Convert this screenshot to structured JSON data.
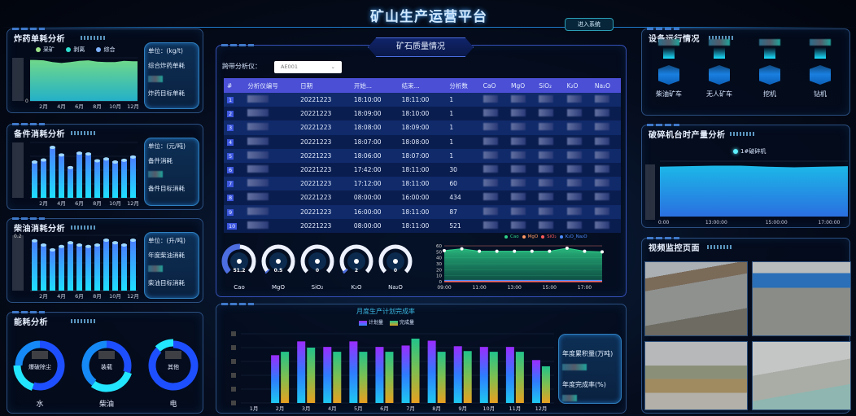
{
  "header": {
    "title": "矿山生产运营平台",
    "enter_button": "进入系统"
  },
  "explosive": {
    "title": "炸药单耗分析",
    "legend": [
      {
        "label": "采矿",
        "color": "#9be38a"
      },
      {
        "label": "剥离",
        "color": "#2fe0d0"
      },
      {
        "label": "综合",
        "color": "#7fb2ff"
      }
    ],
    "info": {
      "unit": "单位：(kg/t)",
      "line1": "综合炸药单耗",
      "line2": "炸药目标单耗"
    },
    "chart_data": {
      "type": "area",
      "categories": [
        "1月",
        "2月",
        "3月",
        "4月",
        "5月",
        "6月",
        "7月",
        "8月",
        "9月",
        "10月",
        "11月",
        "12月"
      ],
      "tick_labels": [
        "2月",
        "4月",
        "6月",
        "8月",
        "10月",
        "12月"
      ],
      "values": [
        0.95,
        0.94,
        0.9,
        0.88,
        0.9,
        0.93,
        0.94,
        0.91,
        0.9,
        0.9,
        0.93,
        0.92
      ],
      "yticks_visible": [
        "0"
      ]
    }
  },
  "spare": {
    "title": "备件消耗分析",
    "info": {
      "unit": "单位：(元/吨)",
      "line1": "备件消耗",
      "line2": "备件目标消耗"
    },
    "chart_data": {
      "type": "bar",
      "categories": [
        "1月",
        "2月",
        "3月",
        "4月",
        "5月",
        "6月",
        "7月",
        "8月",
        "9月",
        "10月",
        "11月",
        "12月"
      ],
      "tick_labels": [
        "2月",
        "4月",
        "6月",
        "8月",
        "10月",
        "12月"
      ],
      "values": [
        145,
        153,
        203,
        173,
        123,
        180,
        177,
        150,
        157,
        145,
        152,
        165
      ]
    }
  },
  "diesel": {
    "title": "柴油消耗分析",
    "info": {
      "unit": "单位：(升/吨)",
      "line1": "年度柴油消耗",
      "line2": "柴油目标消耗"
    },
    "chart_data": {
      "type": "bar",
      "categories": [
        "1月",
        "2月",
        "3月",
        "4月",
        "5月",
        "6月",
        "7月",
        "8月",
        "9月",
        "10月",
        "11月",
        "12月"
      ],
      "tick_labels": [
        "2月",
        "4月",
        "6月",
        "8月",
        "10月",
        "12月"
      ],
      "ymax_label": "0.2",
      "values": [
        0.178,
        0.163,
        0.146,
        0.158,
        0.171,
        0.163,
        0.158,
        0.163,
        0.18,
        0.171,
        0.163,
        0.18
      ]
    }
  },
  "energy": {
    "title": "能耗分析",
    "donuts": [
      {
        "name": "水",
        "center_label": "爆破除尘",
        "shares": [
          55,
          20,
          25
        ]
      },
      {
        "name": "柴油",
        "center_label": "装载",
        "shares": [
          30,
          30,
          40
        ]
      },
      {
        "name": "电",
        "center_label": "其他",
        "shares": [
          88,
          12
        ]
      }
    ],
    "colors": [
      "#1e4fff",
      "#22e6ff",
      "#1589f5"
    ]
  },
  "ore": {
    "title": "矿石质量情况",
    "selector_label": "跨带分析仪：",
    "selector_value": "AE001",
    "columns": [
      "#",
      "分析仪编号",
      "日期",
      "开始...",
      "结束...",
      "分析数",
      "CaO",
      "MgO",
      "SiO₂",
      "K₂O",
      "Na₂O"
    ],
    "rows": [
      {
        "n": "1",
        "date": "20221223",
        "start": "18:10:00",
        "end": "18:11:00",
        "count": "1"
      },
      {
        "n": "2",
        "date": "20221223",
        "start": "18:09:00",
        "end": "18:10:00",
        "count": "1"
      },
      {
        "n": "3",
        "date": "20221223",
        "start": "18:08:00",
        "end": "18:09:00",
        "count": "1"
      },
      {
        "n": "4",
        "date": "20221223",
        "start": "18:07:00",
        "end": "18:08:00",
        "count": "1"
      },
      {
        "n": "5",
        "date": "20221223",
        "start": "18:06:00",
        "end": "18:07:00",
        "count": "1"
      },
      {
        "n": "6",
        "date": "20221223",
        "start": "17:42:00",
        "end": "18:11:00",
        "count": "30"
      },
      {
        "n": "7",
        "date": "20221223",
        "start": "17:12:00",
        "end": "18:11:00",
        "count": "60"
      },
      {
        "n": "8",
        "date": "20221223",
        "start": "08:00:00",
        "end": "16:00:00",
        "count": "434"
      },
      {
        "n": "9",
        "date": "20221223",
        "start": "16:00:00",
        "end": "18:11:00",
        "count": "87"
      },
      {
        "n": "10",
        "date": "20221223",
        "start": "08:00:00",
        "end": "18:11:00",
        "count": "521"
      }
    ],
    "gauges": [
      {
        "label": "Cao",
        "value": "51.2",
        "fraction": 0.51
      },
      {
        "label": "MgO",
        "value": "0.5",
        "fraction": 0.02
      },
      {
        "label": "SiO₂",
        "value": "0",
        "fraction": 0
      },
      {
        "label": "K₂O",
        "value": "2",
        "fraction": 0.03
      },
      {
        "label": "Na₂O",
        "value": "0",
        "fraction": 0
      }
    ],
    "line_chart": {
      "type": "line",
      "legend": [
        {
          "label": "Cao",
          "color": "#2ed18a"
        },
        {
          "label": "MgO",
          "color": "#ff9966"
        },
        {
          "label": "SiO₂",
          "color": "#ff5a5a"
        },
        {
          "label": "K₂O_Na₂O",
          "color": "#4d8cff"
        }
      ],
      "x": [
        "09:00",
        "10:00",
        "11:00",
        "12:00",
        "13:00",
        "14:00",
        "15:00",
        "16:00",
        "17:00",
        "18:00"
      ],
      "xtick_labels": [
        "09:00",
        "11:00",
        "13:00",
        "15:00",
        "17:00"
      ],
      "yticks": [
        "0",
        "10",
        "20",
        "30",
        "40",
        "50",
        "60"
      ],
      "ylim": [
        0,
        60
      ],
      "series": [
        {
          "name": "Cao",
          "values": [
            52,
            55,
            51,
            51,
            51,
            51,
            51,
            56,
            51,
            50
          ]
        },
        {
          "name": "MgO",
          "values": [
            0.5,
            0.5,
            0.5,
            0.5,
            0.5,
            0.5,
            0.5,
            0.5,
            0.5,
            0.5
          ]
        },
        {
          "name": "SiO₂",
          "values": [
            0,
            0,
            0,
            0,
            0,
            0,
            0,
            0,
            0,
            0
          ]
        },
        {
          "name": "K₂O_Na₂O",
          "values": [
            2,
            2,
            2,
            2,
            2,
            2,
            2,
            2,
            2,
            2
          ]
        }
      ]
    }
  },
  "monthly": {
    "chart_data": {
      "type": "bar",
      "title": "月度生产计划完成率",
      "categories": [
        "1月",
        "2月",
        "3月",
        "4月",
        "5月",
        "6月",
        "7月",
        "8月",
        "9月",
        "10月",
        "11月",
        "12月"
      ],
      "series": [
        {
          "name": "计划量",
          "values": [
            0,
            69,
            89,
            81,
            89,
            81,
            83,
            90,
            82,
            81,
            81,
            62
          ]
        },
        {
          "name": "完成量",
          "values": [
            0,
            74,
            80,
            74,
            74,
            74,
            93,
            74,
            75,
            74,
            74,
            53
          ]
        }
      ],
      "ylim": [
        0,
        100
      ]
    },
    "info": {
      "line1": "年度累积量(万吨)",
      "line2": "年度完成率(%)"
    }
  },
  "equipment": {
    "title": "设备运行情况",
    "items": [
      "柴油矿车",
      "无人矿车",
      "挖机",
      "钻机"
    ]
  },
  "crusher": {
    "title": "破碎机台时产量分析",
    "legend": "1#破碎机",
    "chart_data": {
      "type": "area",
      "x": [
        "11:00:00",
        "12:00:00",
        "13:00:00",
        "14:00:00",
        "15:00:00",
        "16:00:00",
        "17:00:00",
        "18:00:00"
      ],
      "xtick_labels": [
        "0:00",
        "13:00:00",
        "15:00:00",
        "17:00:00"
      ],
      "values": [
        0.9,
        0.91,
        0.92,
        0.92,
        0.9,
        0.89,
        0.9,
        0.91
      ]
    }
  },
  "video": {
    "title": "视频监控页面",
    "cameras": [
      "camera-1",
      "camera-2",
      "camera-3",
      "camera-4"
    ]
  }
}
